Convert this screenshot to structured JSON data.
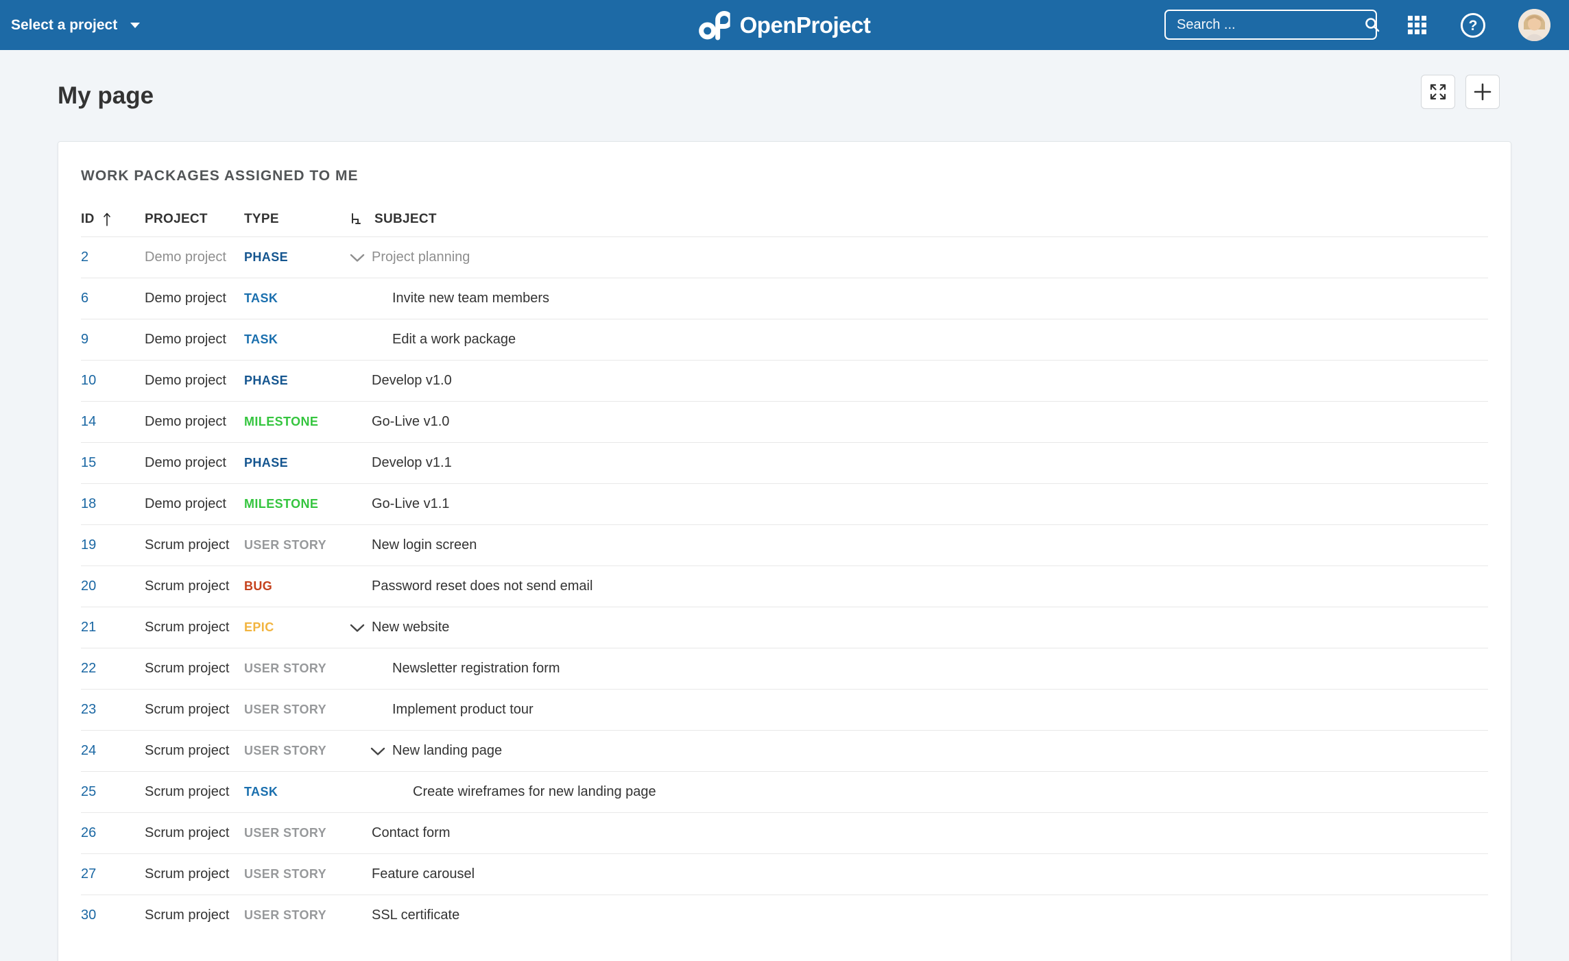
{
  "topbar": {
    "project_selector_label": "Select a project",
    "logo_text": "OpenProject",
    "search_placeholder": "Search ...",
    "bar_color": "#1D6AA6"
  },
  "page": {
    "title": "My page"
  },
  "widget": {
    "title": "WORK PACKAGES ASSIGNED TO ME",
    "columns": {
      "id": "ID",
      "project": "PROJECT",
      "type": "TYPE",
      "subject": "SUBJECT"
    },
    "sort": {
      "column": "ID",
      "direction": "ascending"
    },
    "type_colors": {
      "PHASE": "#14558F",
      "TASK": "#1A6FAE",
      "MILESTONE": "#35C53F",
      "USER STORY": "#97999B",
      "BUG": "#C5411C",
      "EPIC": "#F2B43F"
    },
    "id_link_color": "#1A67A3",
    "rows": [
      {
        "id": "2",
        "project": "Demo project",
        "type": "PHASE",
        "subject": "Project planning",
        "depth": 0,
        "expanded": true,
        "dimmed": true
      },
      {
        "id": "6",
        "project": "Demo project",
        "type": "TASK",
        "subject": "Invite new team members",
        "depth": 1,
        "expanded": false,
        "dimmed": false
      },
      {
        "id": "9",
        "project": "Demo project",
        "type": "TASK",
        "subject": "Edit a work package",
        "depth": 1,
        "expanded": false,
        "dimmed": false
      },
      {
        "id": "10",
        "project": "Demo project",
        "type": "PHASE",
        "subject": "Develop v1.0",
        "depth": 0,
        "expanded": false,
        "dimmed": false
      },
      {
        "id": "14",
        "project": "Demo project",
        "type": "MILESTONE",
        "subject": "Go-Live v1.0",
        "depth": 0,
        "expanded": false,
        "dimmed": false
      },
      {
        "id": "15",
        "project": "Demo project",
        "type": "PHASE",
        "subject": "Develop v1.1",
        "depth": 0,
        "expanded": false,
        "dimmed": false
      },
      {
        "id": "18",
        "project": "Demo project",
        "type": "MILESTONE",
        "subject": "Go-Live v1.1",
        "depth": 0,
        "expanded": false,
        "dimmed": false
      },
      {
        "id": "19",
        "project": "Scrum project",
        "type": "USER STORY",
        "subject": "New login screen",
        "depth": 0,
        "expanded": false,
        "dimmed": false
      },
      {
        "id": "20",
        "project": "Scrum project",
        "type": "BUG",
        "subject": "Password reset does not send email",
        "depth": 0,
        "expanded": false,
        "dimmed": false
      },
      {
        "id": "21",
        "project": "Scrum project",
        "type": "EPIC",
        "subject": "New website",
        "depth": 0,
        "expanded": true,
        "dimmed": false
      },
      {
        "id": "22",
        "project": "Scrum project",
        "type": "USER STORY",
        "subject": "Newsletter registration form",
        "depth": 1,
        "expanded": false,
        "dimmed": false
      },
      {
        "id": "23",
        "project": "Scrum project",
        "type": "USER STORY",
        "subject": "Implement product tour",
        "depth": 1,
        "expanded": false,
        "dimmed": false
      },
      {
        "id": "24",
        "project": "Scrum project",
        "type": "USER STORY",
        "subject": "New landing page",
        "depth": 1,
        "expanded": true,
        "dimmed": false
      },
      {
        "id": "25",
        "project": "Scrum project",
        "type": "TASK",
        "subject": "Create wireframes for new landing page",
        "depth": 2,
        "expanded": false,
        "dimmed": false
      },
      {
        "id": "26",
        "project": "Scrum project",
        "type": "USER STORY",
        "subject": "Contact form",
        "depth": 0,
        "expanded": false,
        "dimmed": false
      },
      {
        "id": "27",
        "project": "Scrum project",
        "type": "USER STORY",
        "subject": "Feature carousel",
        "depth": 0,
        "expanded": false,
        "dimmed": false
      },
      {
        "id": "30",
        "project": "Scrum project",
        "type": "USER STORY",
        "subject": "SSL certificate",
        "depth": 0,
        "expanded": false,
        "dimmed": false
      }
    ]
  }
}
